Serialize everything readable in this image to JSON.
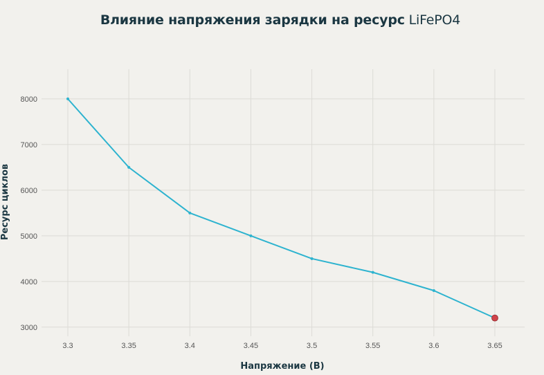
{
  "chart_data": {
    "type": "line",
    "title_bold": "Влияние напряжения зарядки на ресурс",
    "title_normal": "LiFePO4",
    "xlabel": "Напряжение (В)",
    "ylabel": "Ресурс циклов",
    "x": [
      3.3,
      3.35,
      3.4,
      3.45,
      3.5,
      3.55,
      3.6,
      3.65
    ],
    "x_tick_labels": [
      "3.3",
      "3.35",
      "3.4",
      "3.45",
      "3.5",
      "3.55",
      "3.6",
      "3.65"
    ],
    "series": [
      {
        "values": [
          8000,
          6500,
          5500,
          5000,
          4500,
          4200,
          3800,
          3200
        ]
      }
    ],
    "y_ticks": [
      3000,
      4000,
      5000,
      6000,
      7000,
      8000
    ],
    "ylim": [
      2800,
      8650
    ],
    "grid": true,
    "highlight_index": 7,
    "colors": {
      "line": "#2db3cf",
      "highlight": "#d0434a",
      "grid": "#dcdbd6",
      "background": "#f2f1ed"
    }
  }
}
